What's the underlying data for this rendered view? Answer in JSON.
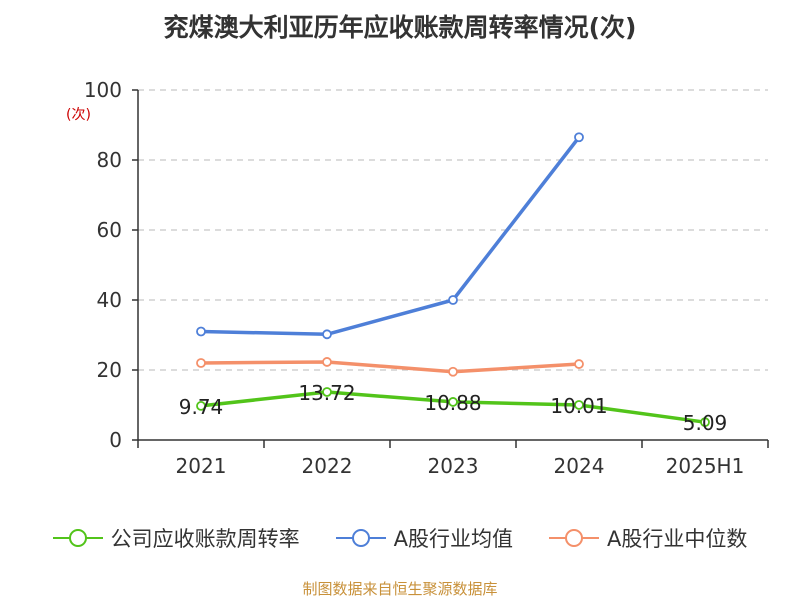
{
  "title": "兖煤澳大利亚历年应收账款周转率情况(次)",
  "ylabel": "(次)",
  "source": "制图数据来自恒生聚源数据库",
  "colors": {
    "company": "#52c41a",
    "avg": "#4e7fd8",
    "median": "#f4906a",
    "grid": "#c8c8c8",
    "axis": "#333333"
  },
  "chart_data": {
    "type": "line",
    "x": [
      "2021",
      "2022",
      "2023",
      "2024",
      "2025H1"
    ],
    "ylim": [
      0,
      100
    ],
    "yticks": [
      0,
      20,
      40,
      60,
      80,
      100
    ],
    "grid": true,
    "legend": "bottom",
    "series": [
      {
        "name": "公司应收账款周转率",
        "values": [
          9.74,
          13.72,
          10.88,
          10.01,
          5.09
        ],
        "labels": [
          "9.74",
          "13.72",
          "10.88",
          "10.01",
          "5.09"
        ]
      },
      {
        "name": "A股行业均值",
        "values": [
          31,
          30.2,
          40,
          86.5,
          null
        ]
      },
      {
        "name": "A股行业中位数",
        "values": [
          22,
          22.3,
          19.5,
          21.7,
          null
        ]
      }
    ]
  }
}
